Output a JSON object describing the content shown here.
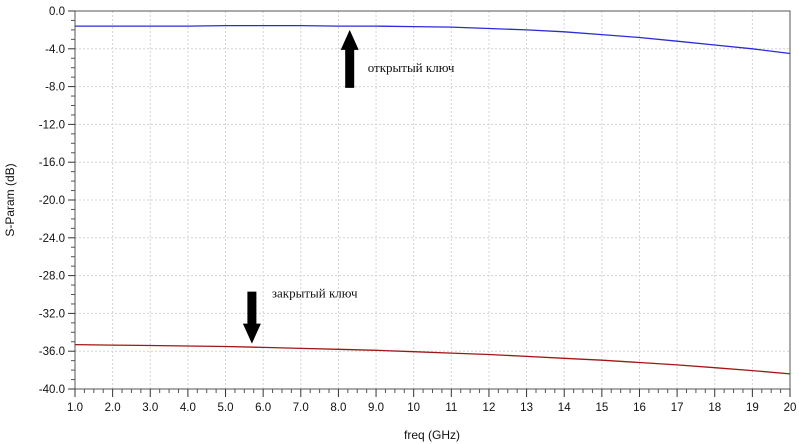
{
  "chart_data": {
    "type": "line",
    "xlabel": "freq (GHz)",
    "ylabel": "S-Param (dB)",
    "xlim": [
      1.0,
      20.0
    ],
    "ylim": [
      -40.0,
      0.0
    ],
    "x_ticks": [
      1,
      2,
      3,
      4,
      5,
      6,
      7,
      8,
      9,
      10,
      11,
      12,
      13,
      14,
      15,
      16,
      17,
      18,
      19,
      20
    ],
    "x_tick_labels": [
      "1.0",
      "2.0",
      "3.0",
      "4.0",
      "5.0",
      "6.0",
      "7.0",
      "8.0",
      "9.0",
      "10",
      "11",
      "12",
      "13",
      "14",
      "15",
      "16",
      "17",
      "18",
      "19",
      "20"
    ],
    "y_ticks": [
      0,
      -4,
      -8,
      -12,
      -16,
      -20,
      -24,
      -28,
      -32,
      -36,
      -40
    ],
    "y_tick_labels": [
      "0.0",
      "-4.0",
      "-8.0",
      "-12.0",
      "-16.0",
      "-20.0",
      "-24.0",
      "-28.0",
      "-32.0",
      "-36.0",
      "-40.0"
    ],
    "grid": true,
    "series": [
      {
        "color": "#2b2bd9",
        "x": [
          1,
          2,
          3,
          4,
          5,
          6,
          7,
          8,
          9,
          10,
          11,
          12,
          13,
          14,
          15,
          16,
          17,
          18,
          19,
          20
        ],
        "y": [
          -1.6,
          -1.6,
          -1.6,
          -1.6,
          -1.55,
          -1.55,
          -1.55,
          -1.6,
          -1.6,
          -1.65,
          -1.7,
          -1.85,
          -2.0,
          -2.2,
          -2.5,
          -2.8,
          -3.2,
          -3.6,
          -4.0,
          -4.5
        ]
      },
      {
        "color": "#a31515",
        "x": [
          1,
          2,
          3,
          4,
          5,
          6,
          7,
          8,
          9,
          10,
          11,
          12,
          13,
          14,
          15,
          16,
          17,
          18,
          19,
          20
        ],
        "y": [
          -35.3,
          -35.35,
          -35.4,
          -35.45,
          -35.5,
          -35.6,
          -35.7,
          -35.8,
          -35.9,
          -36.05,
          -36.2,
          -36.35,
          -36.55,
          -36.75,
          -36.95,
          -37.2,
          -37.45,
          -37.75,
          -38.05,
          -38.4
        ]
      }
    ],
    "annotations": [
      {
        "text": "открытый ключ",
        "arrow": "up",
        "x": 8.3,
        "y": -2.0
      },
      {
        "text": "закрытый ключ",
        "arrow": "down",
        "x": 5.7,
        "y": -35.2
      }
    ]
  }
}
